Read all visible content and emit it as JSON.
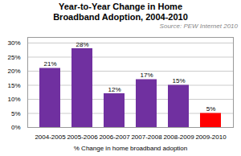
{
  "chart_data": {
    "type": "bar",
    "title": "Year-to-Year Change in Home",
    "subtitle": "Broadband Adoption, 2004-2010",
    "xlabel": "% Change in home broadband adoption",
    "categories": [
      "2004-2005",
      "2005-2006",
      "2006-2007",
      "2007-2008",
      "2008-2009",
      "2009-2010"
    ],
    "values": [
      21,
      28,
      12,
      17,
      15,
      5
    ],
    "value_labels": [
      "21%",
      "28%",
      "12%",
      "17%",
      "15%",
      "5%"
    ],
    "colors": [
      "#7030a0",
      "#7030a0",
      "#7030a0",
      "#7030a0",
      "#7030a0",
      "#ff0000"
    ],
    "ylim": [
      0,
      32
    ],
    "yticks": [
      {
        "value": 0,
        "label": "0%"
      },
      {
        "value": 5,
        "label": "5%"
      },
      {
        "value": 10,
        "label": "10%"
      },
      {
        "value": 15,
        "label": "15%"
      },
      {
        "value": 20,
        "label": "20%"
      },
      {
        "value": 25,
        "label": "25%"
      },
      {
        "value": 30,
        "label": "30%"
      }
    ],
    "grid": true,
    "data_labels": true,
    "annotations": [
      "Source: PEW Internet 2010"
    ]
  }
}
